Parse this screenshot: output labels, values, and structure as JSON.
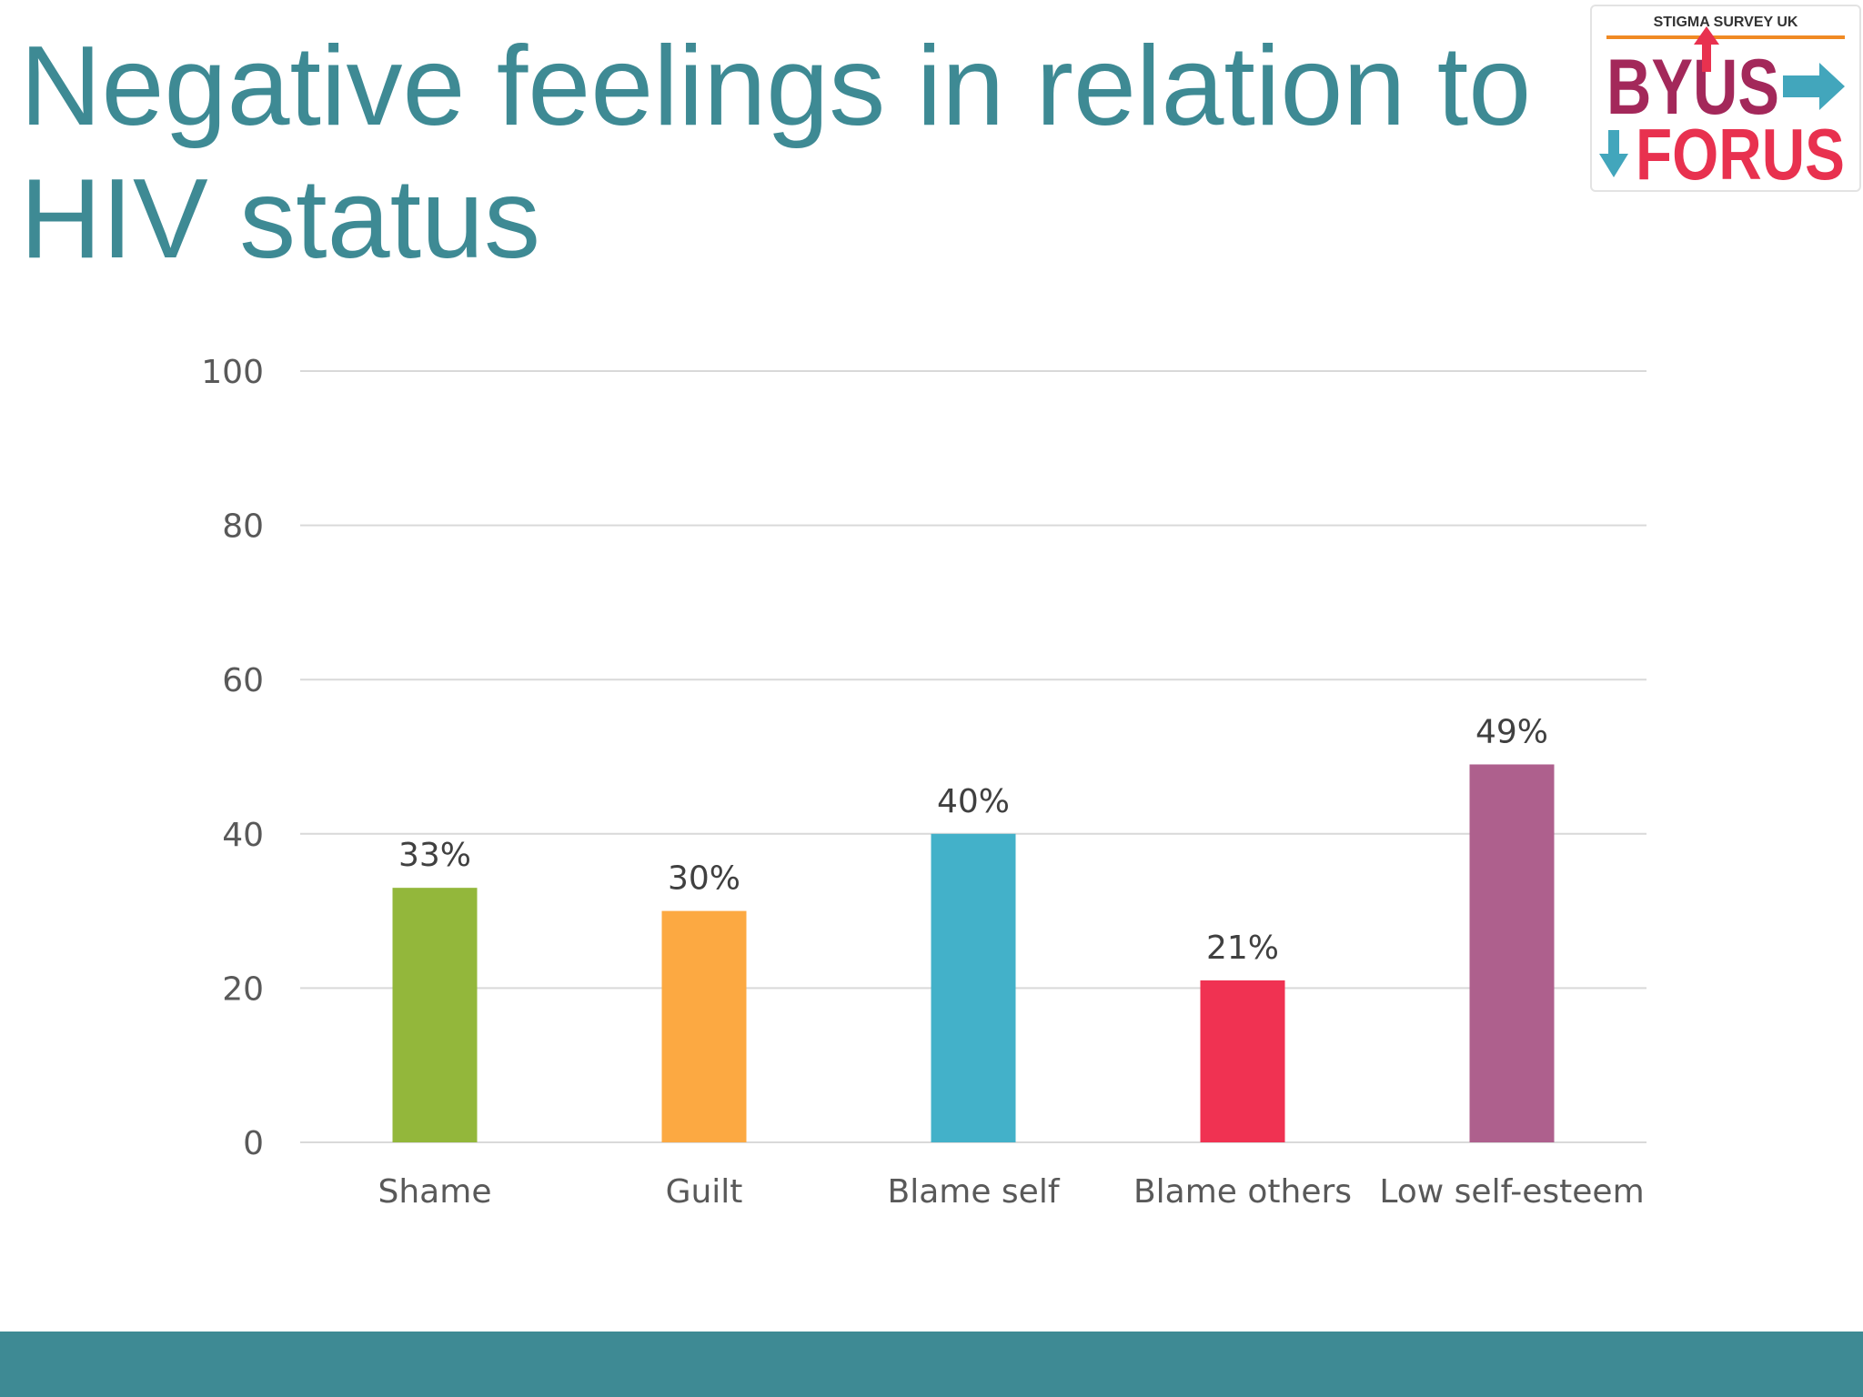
{
  "slide": {
    "title": "Negative feelings in relation to HIV status"
  },
  "logo": {
    "caption": "STIGMA SURVEY UK",
    "line1": "BYUS",
    "line2": "FORUS"
  },
  "colors": {
    "title": "#3e8a94",
    "footer": "#3e8a94",
    "grid": "#d9d9d9",
    "axis_text": "#595959",
    "label_text": "#404040",
    "logo_magenta": "#a3285a",
    "logo_orange": "#f08a24",
    "logo_teal": "#42a6bc",
    "logo_red": "#e8314f"
  },
  "chart_data": {
    "type": "bar",
    "title": "",
    "xlabel": "",
    "ylabel": "",
    "ylim": [
      0,
      100
    ],
    "yticks": [
      0,
      20,
      40,
      60,
      80,
      100
    ],
    "grid": true,
    "categories": [
      "Shame",
      "Guilt",
      "Blame self",
      "Blame others",
      "Low self-esteem"
    ],
    "values": [
      33,
      30,
      40,
      21,
      49
    ],
    "data_labels": [
      "33%",
      "30%",
      "40%",
      "21%",
      "49%"
    ],
    "bar_colors": [
      "#93b73b",
      "#fca942",
      "#43b1c9",
      "#f03252",
      "#ae608d"
    ]
  }
}
